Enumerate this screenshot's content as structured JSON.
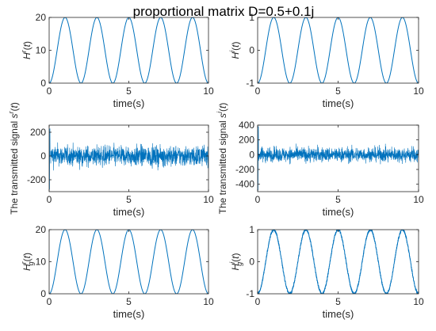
{
  "title": "proportional matrix D=0.5+0.1j",
  "chart_data": [
    {
      "type": "line",
      "ylabel": "H^r (t)",
      "xlabel": "time(s)",
      "xlim": [
        0,
        10
      ],
      "ylim": [
        0,
        20
      ],
      "xticks": [
        0,
        5,
        10
      ],
      "yticks": [
        0,
        10,
        20
      ],
      "series": [
        {
          "kind": "cosine",
          "offset": 10,
          "amplitude": -10,
          "period": 2,
          "samples": 401
        }
      ]
    },
    {
      "type": "line",
      "ylabel": "H^i (t)",
      "xlabel": "time(s)",
      "xlim": [
        0,
        10
      ],
      "ylim": [
        -1,
        1
      ],
      "xticks": [
        0,
        5,
        10
      ],
      "yticks": [
        -1,
        0,
        1
      ],
      "series": [
        {
          "kind": "sine",
          "offset": 0,
          "amplitude": 1,
          "period": 2,
          "phase": -0.5,
          "samples": 401
        }
      ]
    },
    {
      "type": "line",
      "ylabel": "The transmitted signal s^r (t)",
      "xlabel": "time(s)",
      "xlim": [
        0,
        10
      ],
      "ylim": [
        -300,
        260
      ],
      "xticks": [
        0,
        5,
        10
      ],
      "yticks": [
        -200,
        0,
        200
      ],
      "series": [
        {
          "kind": "noise",
          "offset": 0,
          "amplitude": 60,
          "spikes": [
            [
              0.02,
              -280
            ],
            [
              0.05,
              230
            ]
          ],
          "samples": 1200
        }
      ]
    },
    {
      "type": "line",
      "ylabel": "The transmitted signal s^i (t)",
      "xlabel": "time(s)",
      "xlim": [
        0,
        10
      ],
      "ylim": [
        -500,
        400
      ],
      "xticks": [
        0,
        5,
        10
      ],
      "yticks": [
        -400,
        -200,
        0,
        200,
        400
      ],
      "series": [
        {
          "kind": "noise",
          "offset": 0,
          "amplitude": 70,
          "spikes": [
            [
              0.02,
              -480
            ],
            [
              0.05,
              380
            ]
          ],
          "samples": 1200
        }
      ]
    },
    {
      "type": "line",
      "ylabel": "H_g^r (t)",
      "xlabel": "time(s)",
      "xlim": [
        0,
        10
      ],
      "ylim": [
        0,
        20
      ],
      "xticks": [
        0,
        5,
        10
      ],
      "yticks": [
        0,
        10,
        20
      ],
      "series": [
        {
          "kind": "cosine",
          "offset": 10,
          "amplitude": -10,
          "period": 2,
          "samples": 401
        }
      ]
    },
    {
      "type": "line",
      "ylabel": "H_g^i (t)",
      "xlabel": "time(s)",
      "xlim": [
        0,
        10
      ],
      "ylim": [
        -1,
        1
      ],
      "xticks": [
        0,
        5,
        10
      ],
      "yticks": [
        -1,
        0,
        1
      ],
      "series": [
        {
          "kind": "sine",
          "offset": 0,
          "amplitude": 1,
          "period": 2,
          "phase": -0.5,
          "noise": 0.04,
          "samples": 1500
        }
      ]
    }
  ],
  "colors": {
    "line": "#0072BD",
    "axis": "#262626"
  }
}
